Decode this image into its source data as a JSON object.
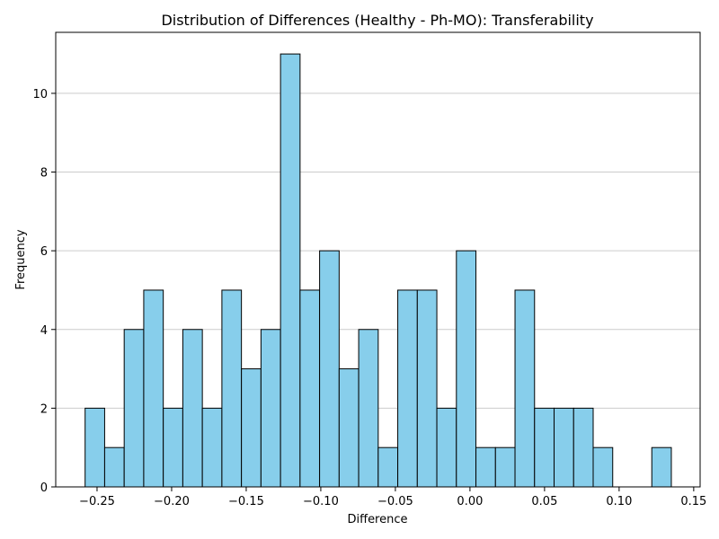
{
  "chart_data": {
    "type": "bar",
    "title": "Distribution of Differences (Healthy - Ph-MO): Transferability",
    "xlabel": "Difference",
    "ylabel": "Frequency",
    "bin_start": -0.258,
    "bin_width": 0.0131,
    "values": [
      2,
      1,
      4,
      5,
      2,
      4,
      2,
      5,
      3,
      4,
      11,
      5,
      6,
      3,
      4,
      1,
      5,
      5,
      2,
      6,
      1,
      1,
      5,
      2,
      2,
      2,
      1,
      0,
      0,
      1
    ],
    "xlim": [
      -0.2777,
      0.1543
    ],
    "ylim": [
      0,
      11.55
    ],
    "xticks": [
      -0.25,
      -0.2,
      -0.15,
      -0.1,
      -0.05,
      0.0,
      0.05,
      0.1,
      0.15
    ],
    "xtick_labels": [
      "−0.25",
      "−0.20",
      "−0.15",
      "−0.10",
      "−0.05",
      "0.00",
      "0.05",
      "0.10",
      "0.15"
    ],
    "yticks": [
      0,
      2,
      4,
      6,
      8,
      10
    ],
    "ytick_labels": [
      "0",
      "2",
      "4",
      "6",
      "8",
      "10"
    ],
    "grid": "y",
    "bar_color": "#87CEEB",
    "edge_color": "#000000",
    "grid_color": "#cccccc"
  }
}
